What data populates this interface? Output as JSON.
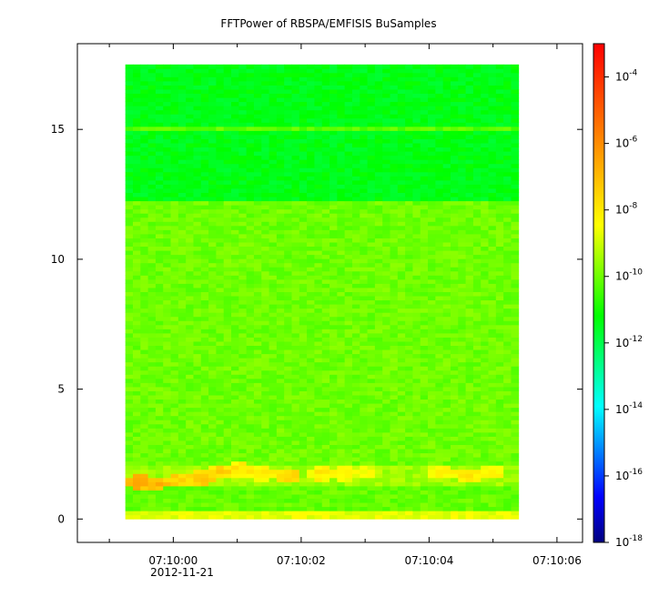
{
  "chart_data": {
    "type": "heatmap",
    "title": "FFTPower of RBSPA/EMFISIS  BuSamples",
    "xlabel": "",
    "ylabel": "",
    "x_tick_labels": [
      "07:10:00",
      "07:10:02",
      "07:10:04",
      "07:10:06"
    ],
    "x_tick_values_s": [
      0,
      2,
      4,
      6
    ],
    "x_minor_tick_values_s": [
      -1,
      1,
      3,
      5
    ],
    "x_sub_label": "2012-11-21",
    "xlim_s": [
      -1.5,
      6.4
    ],
    "data_x_range_s": [
      -0.75,
      5.4
    ],
    "y_tick_labels": [
      "0",
      "5",
      "10",
      "15"
    ],
    "y_tick_values": [
      0,
      5,
      10,
      15
    ],
    "ylim": [
      -0.9,
      18.3
    ],
    "data_y_range": [
      0,
      17.5
    ],
    "colorbar": {
      "scale": "log",
      "range": [
        1e-18,
        0.001
      ],
      "tick_bases": [
        "10",
        "10",
        "10",
        "10",
        "10",
        "10",
        "10",
        "10"
      ],
      "tick_exponents": [
        "-18",
        "-16",
        "-14",
        "-12",
        "-10",
        "-8",
        "-6",
        "-4"
      ],
      "tick_values_exp": [
        -18,
        -16,
        -14,
        -12,
        -10,
        -8,
        -6,
        -4
      ],
      "colormap": [
        "#00007f",
        "#0000ff",
        "#007fff",
        "#00ffff",
        "#00ff7f",
        "#00ff00",
        "#7fff00",
        "#ffff00",
        "#ffbf00",
        "#ff7f00",
        "#ff3f00",
        "#ff0000"
      ]
    },
    "bands": [
      {
        "y_from": 0,
        "y_to": 0.3,
        "level_exp": -8.7
      },
      {
        "y_from": 0.3,
        "y_to": 1.2,
        "level_exp": -10.1
      },
      {
        "y_from": 1.2,
        "y_to": 2.1,
        "level_exp": -9.5
      },
      {
        "y_from": 2.1,
        "y_to": 12.2,
        "level_exp": -10.0
      },
      {
        "y_from": 12.2,
        "y_to": 17.5,
        "level_exp": -11.4
      }
    ],
    "line_feature": {
      "y": 15.0,
      "level_exp": -10.2
    },
    "hotspots": [
      {
        "x": -0.55,
        "y": 1.45,
        "level_exp": -7.0
      },
      {
        "x": -0.3,
        "y": 1.35,
        "level_exp": -7.2
      },
      {
        "x": 0.1,
        "y": 1.5,
        "level_exp": -7.8
      },
      {
        "x": 0.45,
        "y": 1.6,
        "level_exp": -7.6
      },
      {
        "x": 0.75,
        "y": 1.85,
        "level_exp": -8.0
      },
      {
        "x": 1.05,
        "y": 1.9,
        "level_exp": -8.2
      },
      {
        "x": 1.35,
        "y": 1.75,
        "level_exp": -8.3
      },
      {
        "x": 1.8,
        "y": 1.7,
        "level_exp": -7.9
      },
      {
        "x": 2.3,
        "y": 1.75,
        "level_exp": -8.4
      },
      {
        "x": 2.7,
        "y": 1.75,
        "level_exp": -8.6
      },
      {
        "x": 3.0,
        "y": 1.8,
        "level_exp": -8.8
      },
      {
        "x": 4.2,
        "y": 1.8,
        "level_exp": -8.4
      },
      {
        "x": 4.6,
        "y": 1.7,
        "level_exp": -8.3
      },
      {
        "x": 5.0,
        "y": 1.85,
        "level_exp": -8.5
      }
    ]
  }
}
